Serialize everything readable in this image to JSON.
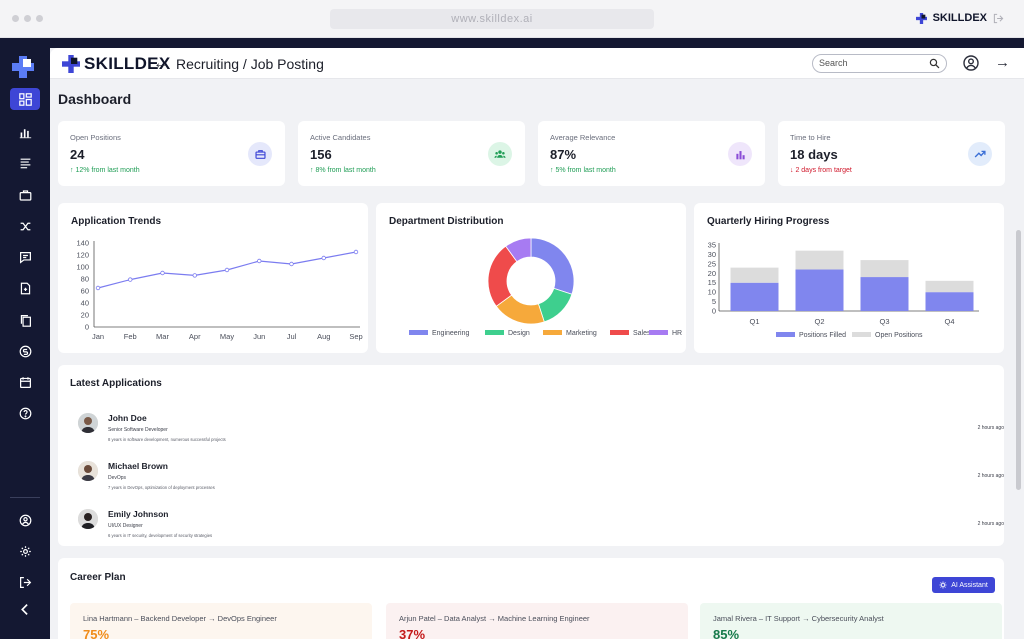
{
  "browser": {
    "url": "www.skilldex.ai",
    "brand": "SKILLDEX"
  },
  "header": {
    "logo": "SKILLDEX",
    "breadcrumb": "Recruiting / Job Posting",
    "search_placeholder": "Search"
  },
  "page_title": "Dashboard",
  "stats": [
    {
      "label": "Open Positions",
      "value": "24",
      "change": "↑ 12% from last month",
      "trend": "up",
      "icon": "briefcase-icon",
      "color": "#3e46d6",
      "bg": "#e5e8fb"
    },
    {
      "label": "Active Candidates",
      "value": "156",
      "change": "↑ 8% from last month",
      "trend": "up",
      "icon": "users-icon",
      "color": "#1f9d55",
      "bg": "#dcf5e6"
    },
    {
      "label": "Average Relevance",
      "value": "87%",
      "change": "↑ 5% from last month",
      "trend": "up",
      "icon": "bar-chart-icon",
      "color": "#8a4dd6",
      "bg": "#efe6fb"
    },
    {
      "label": "Time to Hire",
      "value": "18 days",
      "change": "↓ 2 days from target",
      "trend": "down",
      "icon": "trending-up-icon",
      "color": "#3b6fd6",
      "bg": "#e2ecfb"
    }
  ],
  "chart_data": [
    {
      "type": "line",
      "title": "Application Trends",
      "categories": [
        "Jan",
        "Feb",
        "Mar",
        "Apr",
        "May",
        "Jun",
        "Jul",
        "Aug",
        "Sep"
      ],
      "values": [
        65,
        79,
        90,
        86,
        95,
        110,
        105,
        115,
        125
      ],
      "ylim": [
        0,
        140
      ],
      "yticks": [
        0,
        20,
        40,
        60,
        80,
        100,
        120,
        140
      ],
      "color": "#7b7cf0"
    },
    {
      "type": "pie",
      "title": "Department Distribution",
      "categories": [
        "Engineering",
        "Design",
        "Marketing",
        "Sales",
        "HR"
      ],
      "values": [
        30,
        15,
        20,
        25,
        10
      ],
      "colors": [
        "#8086ee",
        "#3ecf8e",
        "#f6a93b",
        "#ef4b4b",
        "#a77bf2"
      ],
      "legend": "bottom"
    },
    {
      "type": "bar",
      "title": "Quarterly Hiring Progress",
      "categories": [
        "Q1",
        "Q2",
        "Q3",
        "Q4"
      ],
      "series": [
        {
          "name": "Positions Filled",
          "values": [
            15,
            22,
            18,
            10
          ],
          "color": "#8086ee"
        },
        {
          "name": "Open Positions",
          "values": [
            8,
            10,
            9,
            6
          ],
          "color": "#dcdcdc"
        }
      ],
      "stacked": true,
      "ylim": [
        0,
        35
      ],
      "yticks": [
        0,
        5,
        10,
        15,
        20,
        25,
        30,
        35
      ],
      "legend": "bottom"
    }
  ],
  "latest": {
    "title": "Latest Applications",
    "items": [
      {
        "name": "John Doe",
        "role": "Senior Software Developer",
        "desc": "8 years in software development, numerous successful projects",
        "time": "2 hours ago"
      },
      {
        "name": "Michael Brown",
        "role": "DevOps",
        "desc": "7 years in DevOps, optimization of deployment processes",
        "time": "2 hours ago"
      },
      {
        "name": "Emily Johnson",
        "role": "UI/UX Designer",
        "desc": "6 years in IT security, development of security strategies",
        "time": "2 hours ago"
      }
    ]
  },
  "career": {
    "title": "Career Plan",
    "ai_button": "AI Assistant",
    "plans": [
      {
        "text": "Lina Hartmann – Backend Developer → DevOps Engineer",
        "percent": "75%",
        "color": "#f08c1a",
        "bg": "#fdf6ef"
      },
      {
        "text": "Arjun Patel – Data Analyst → Machine Learning Engineer",
        "percent": "37%",
        "color": "#c41a1a",
        "bg": "#fbf1f1"
      },
      {
        "text": "Jamal Rivera – IT Support → Cybersecurity Analyst",
        "percent": "85%",
        "color": "#167a4a",
        "bg": "#eef8f1"
      }
    ]
  }
}
